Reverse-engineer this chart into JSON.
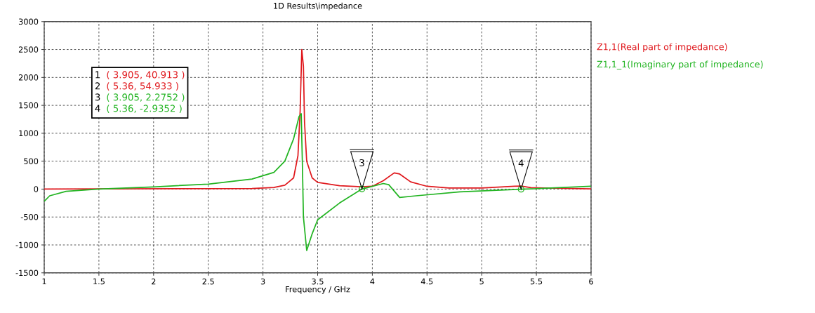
{
  "chart_data": {
    "type": "line",
    "title": "1D Results\\impedance",
    "xlabel": "Frequency / GHz",
    "xlim": [
      1,
      6
    ],
    "xticks": [
      1,
      1.5,
      2,
      2.5,
      3,
      3.5,
      4,
      4.5,
      5,
      5.5,
      6
    ],
    "ylim": [
      -1500,
      3000
    ],
    "yticks": [
      -1500,
      -1000,
      -500,
      0,
      500,
      1000,
      1500,
      2000,
      2500,
      3000
    ],
    "grid": true,
    "legend": "top right",
    "series": [
      {
        "name": "Z1,1(Real part of impedance)",
        "color": "#e0191e",
        "x": [
          1,
          2.9,
          3.1,
          3.2,
          3.28,
          3.32,
          3.34,
          3.355,
          3.37,
          3.38,
          3.4,
          3.45,
          3.5,
          3.7,
          3.905,
          4.0,
          4.1,
          4.2,
          4.25,
          4.35,
          4.5,
          4.7,
          5.0,
          5.3,
          5.36,
          5.45,
          6
        ],
        "values": [
          0,
          10,
          30,
          70,
          200,
          600,
          1400,
          2500,
          2200,
          1200,
          500,
          200,
          120,
          60,
          41,
          50,
          150,
          290,
          270,
          130,
          50,
          20,
          20,
          50,
          55,
          25,
          5
        ]
      },
      {
        "name": "Z1,1_1(Imaginary part of impedance)",
        "color": "#22b422",
        "x": [
          1,
          1.05,
          1.2,
          1.5,
          2,
          2.5,
          2.9,
          3.1,
          3.2,
          3.28,
          3.33,
          3.35,
          3.36,
          3.37,
          3.4,
          3.45,
          3.5,
          3.7,
          3.905,
          4.1,
          4.15,
          4.25,
          4.4,
          4.8,
          5.36,
          6
        ],
        "values": [
          -220,
          -120,
          -40,
          0,
          40,
          90,
          180,
          300,
          500,
          900,
          1300,
          1350,
          500,
          -500,
          -1100,
          -800,
          -550,
          -250,
          2,
          100,
          80,
          -150,
          -120,
          -50,
          -3,
          50
        ]
      }
    ],
    "annotations": [
      "1",
      "( 3.905, 40.913 )",
      "2",
      "( 5.36, 54.933 )",
      "3",
      "( 3.905, 2.2752 )",
      "4",
      "( 5.36, -2.9352 )",
      {
        "text": "3",
        "x": 3.905,
        "y": 2.2752
      },
      {
        "text": "4",
        "x": 5.36,
        "y": -2.9352
      }
    ]
  }
}
